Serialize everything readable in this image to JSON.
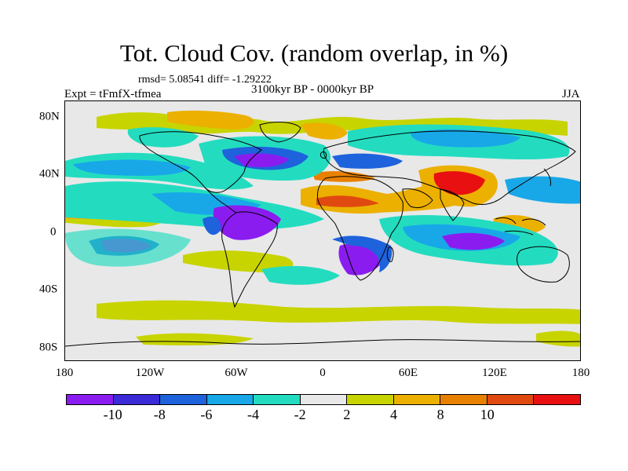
{
  "header": {
    "title": "Tot. Cloud Cov. (random overlap, in %)",
    "stats": "rmsd= 5.08541 diff= -1.29222",
    "experiment": "Expt = tFmfX-tfmea",
    "period": "3100kyr BP - 0000kyr BP",
    "season": "JJA"
  },
  "map": {
    "projection": "cylindrical equidistant",
    "lon_range": [
      -180,
      180
    ],
    "lat_range": [
      -90,
      90
    ],
    "x_tick_labels": [
      "180",
      "120W",
      "60W",
      "0",
      "60E",
      "120E",
      "180"
    ],
    "y_tick_labels": [
      "80N",
      "40N",
      "0",
      "40S",
      "80S"
    ]
  },
  "colorbar": {
    "labels": [
      "-10",
      "-8",
      "-6",
      "-4",
      "-2",
      "2",
      "4",
      "8",
      "10"
    ],
    "colors": [
      "#8b1cf0",
      "#3a2bd6",
      "#1e62dc",
      "#18a8e8",
      "#23dcc0",
      "#e8e8e8",
      "#c8d400",
      "#ecb000",
      "#e88000",
      "#e04a10",
      "#e81010"
    ]
  }
}
